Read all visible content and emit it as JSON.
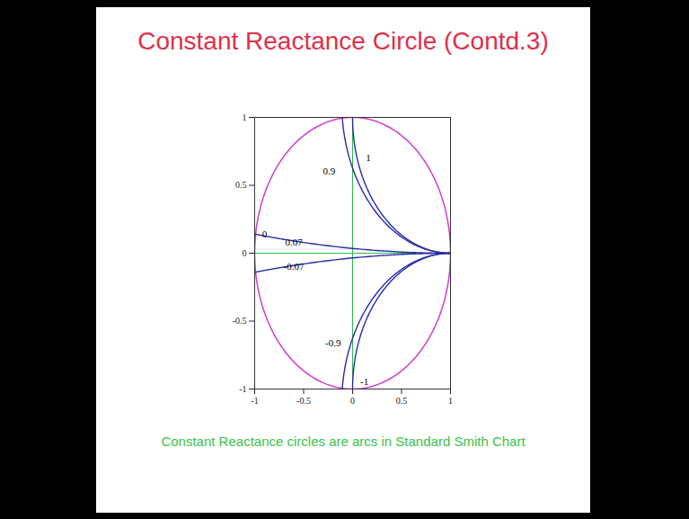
{
  "chart_data": {
    "type": "smith",
    "title": "Constant Reactance Circle (Contd.3)",
    "caption": "Constant Reactance circles are arcs in Standard Smith Chart",
    "xlim": [
      -1,
      1
    ],
    "ylim": [
      -1,
      1
    ],
    "xticks": [
      -1,
      -0.5,
      0,
      0.5,
      1
    ],
    "yticks": [
      -1,
      -0.5,
      0,
      0.5,
      1
    ],
    "grid": false,
    "boundary": {
      "radius": 1,
      "color": "#d23ad2"
    },
    "reference_lines": {
      "x": 0,
      "y": 0,
      "color": "#2fb84a"
    },
    "arcs": {
      "color": "#2a2aa8",
      "reactance": [
        1,
        0.9,
        0.07,
        -0.07,
        -0.9,
        -1
      ],
      "label_x": [
        0.16,
        -0.24,
        -0.6,
        -0.6,
        -0.2,
        0.12
      ],
      "label_y": [
        0.7,
        0.6,
        0.08,
        -0.1,
        -0.66,
        -0.95
      ]
    },
    "annotations": [
      {
        "text": "0",
        "x": -0.9,
        "y": 0.14
      }
    ]
  }
}
